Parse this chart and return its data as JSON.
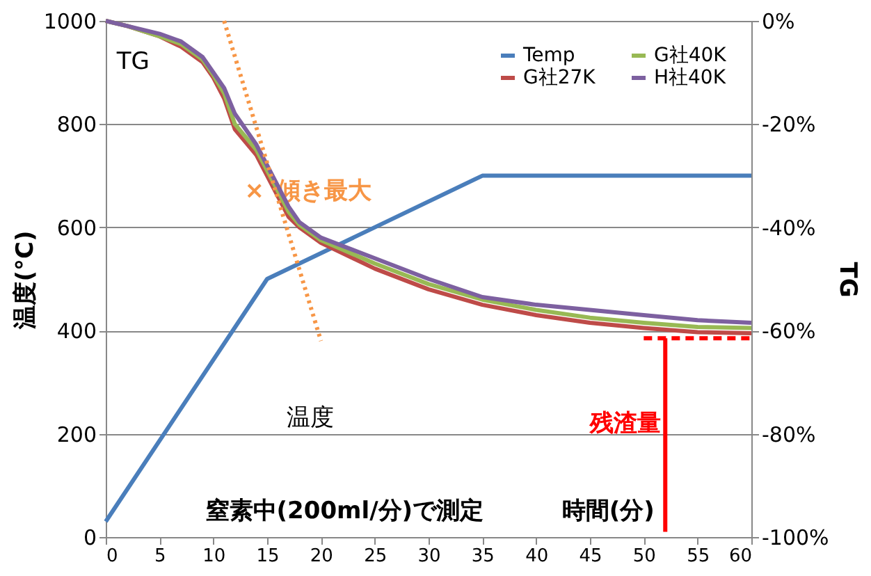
{
  "chart_data": {
    "type": "line",
    "xlabel": "時間(分)",
    "ylabel": "温度(°C)",
    "y2label": "TG",
    "xlim": [
      0,
      60
    ],
    "xticks": [
      0,
      5,
      10,
      15,
      20,
      25,
      30,
      35,
      40,
      45,
      50,
      55,
      60
    ],
    "ylim": [
      0,
      1000
    ],
    "yticks": [
      0,
      200,
      400,
      600,
      800,
      1000
    ],
    "y2lim": [
      -100,
      0
    ],
    "y2ticks": [
      {
        "value": -100,
        "label": "-100%"
      },
      {
        "value": -80,
        "label": "-80%"
      },
      {
        "value": -60,
        "label": "-60%"
      },
      {
        "value": -40,
        "label": "-40%"
      },
      {
        "value": -20,
        "label": "-20%"
      },
      {
        "value": 0,
        "label": "0%"
      }
    ],
    "grid": "y",
    "legend": "top right",
    "marker": "none",
    "series": [
      {
        "name": "Temp",
        "color": "#4a7ebb",
        "x": [
          0,
          15,
          35,
          60
        ],
        "values": [
          30,
          500,
          700,
          700
        ]
      },
      {
        "name": "G社27K",
        "color": "#be4b48",
        "axis": "y2",
        "x": [
          0,
          2,
          5,
          7,
          9,
          10,
          11,
          12,
          14,
          15,
          16,
          17,
          18,
          20,
          25,
          30,
          35,
          40,
          45,
          50,
          55,
          60
        ],
        "values": [
          0,
          -1,
          -3,
          -5,
          -8,
          -11,
          -15,
          -21,
          -26,
          -30,
          -34,
          -38,
          -40,
          -43,
          -48,
          -52,
          -55,
          -57,
          -58.5,
          -59.5,
          -60.3,
          -60.5
        ]
      },
      {
        "name": "G社40K",
        "color": "#98b954",
        "axis": "y2",
        "x": [
          0,
          2,
          5,
          7,
          9,
          10,
          11,
          12,
          14,
          15,
          16,
          17,
          18,
          20,
          25,
          30,
          35,
          40,
          45,
          50,
          55,
          60
        ],
        "values": [
          0,
          -1,
          -3,
          -4.5,
          -7.5,
          -10.5,
          -14,
          -20,
          -25,
          -29,
          -33,
          -37,
          -39.5,
          -42.5,
          -47,
          -51,
          -54,
          -56,
          -57.5,
          -58.5,
          -59.3,
          -59.5
        ]
      },
      {
        "name": "H社40K",
        "color": "#7d60a0",
        "axis": "y2",
        "x": [
          0,
          2,
          5,
          7,
          9,
          10,
          11,
          12,
          14,
          15,
          16,
          17,
          18,
          20,
          25,
          30,
          35,
          40,
          45,
          50,
          55,
          60
        ],
        "values": [
          0,
          -1,
          -2.5,
          -4,
          -7,
          -10,
          -13,
          -18,
          -24,
          -28,
          -32,
          -36,
          -39,
          -42,
          -46,
          -50,
          -53.5,
          -55,
          -56,
          -57,
          -58,
          -58.5
        ]
      },
      {
        "color": "#f79646",
        "axis": "y2",
        "line_style": "dotted",
        "x": [
          11,
          20
        ],
        "values": [
          0,
          -62
        ]
      },
      {
        "color": "#ff0000",
        "axis": "y2",
        "line_style": "dashed",
        "x": [
          50,
          60
        ],
        "values": [
          -61.5,
          -61.5
        ]
      },
      {
        "color": "#ff0000",
        "axis": "y2",
        "x": [
          52,
          52
        ],
        "values": [
          -61.5,
          -99
        ]
      }
    ],
    "annotations": [
      "TG",
      "温度",
      "× 傾き最大",
      "残渣量",
      "窒素中(200ml/分)で測定"
    ]
  }
}
